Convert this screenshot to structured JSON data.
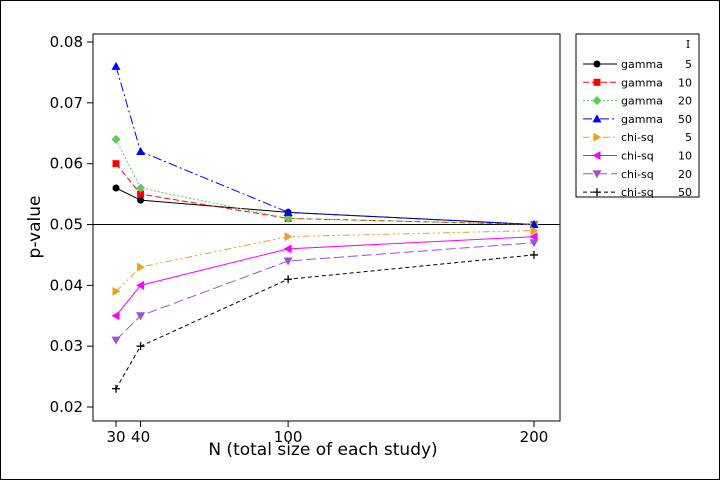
{
  "chart_data": {
    "type": "line",
    "title": "",
    "xlabel": "N (total size of each study)",
    "ylabel": "p-value",
    "x": [
      30,
      40,
      100,
      200
    ],
    "xlim": [
      25,
      210
    ],
    "ylim": [
      0.02,
      0.081
    ],
    "xticks": [
      30,
      40,
      100,
      200
    ],
    "yticks": [
      0.02,
      0.03,
      0.04,
      0.05,
      0.06,
      0.07,
      0.08
    ],
    "ytick_labels": [
      "0.02",
      "0.03",
      "0.04",
      "0.05",
      "0.06",
      "0.07",
      "0.08"
    ],
    "reference_line": 0.05,
    "legend_header": "I",
    "legend_position": "right, outside",
    "series": [
      {
        "name": "gamma",
        "I": "5",
        "values": [
          0.056,
          0.054,
          0.052,
          0.05
        ],
        "color": "#000000",
        "marker": "circle",
        "dash": "solid"
      },
      {
        "name": "gamma",
        "I": "10",
        "values": [
          0.06,
          0.055,
          0.051,
          0.05
        ],
        "color": "#ff0000",
        "marker": "square",
        "dash": "dash"
      },
      {
        "name": "gamma",
        "I": "20",
        "values": [
          0.064,
          0.056,
          0.051,
          0.05
        ],
        "color": "#5ccc5c",
        "marker": "diamond",
        "dash": "dot"
      },
      {
        "name": "gamma",
        "I": "50",
        "values": [
          0.076,
          0.062,
          0.052,
          0.05
        ],
        "color": "#0000ff",
        "marker": "triangle-up",
        "dash": "dashdot"
      },
      {
        "name": "chi-sq",
        "I": "5",
        "values": [
          0.039,
          0.043,
          0.048,
          0.049
        ],
        "color": "#f0a020",
        "marker": "triangle-right",
        "dash": "dashdotdot"
      },
      {
        "name": "chi-sq",
        "I": "10",
        "values": [
          0.035,
          0.04,
          0.046,
          0.048
        ],
        "color": "#ff00ff",
        "marker": "triangle-left",
        "dash": "solid"
      },
      {
        "name": "chi-sq",
        "I": "20",
        "values": [
          0.031,
          0.035,
          0.044,
          0.047
        ],
        "color": "#a050d0",
        "marker": "triangle-down",
        "dash": "longdash"
      },
      {
        "name": "chi-sq",
        "I": "50",
        "values": [
          0.023,
          0.03,
          0.041,
          0.045
        ],
        "color": "#000000",
        "marker": "plus",
        "dash": "shortdash"
      }
    ]
  }
}
